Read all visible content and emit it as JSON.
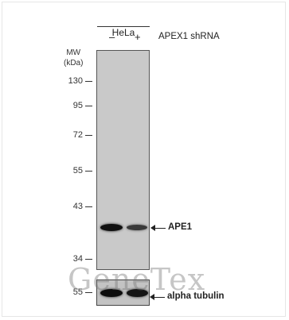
{
  "cell_line": "HeLa",
  "lanes": [
    "–",
    "+"
  ],
  "treatment": "APEX1 shRNA",
  "mw": {
    "title_line1": "MW",
    "title_line2": "(kDa)",
    "markers": [
      "130",
      "95",
      "72",
      "55",
      "43",
      "34"
    ],
    "lower_marker": "55"
  },
  "bands": {
    "main_label": "APE1",
    "loading_label": "alpha tubulin"
  },
  "watermark": "GeneTex"
}
